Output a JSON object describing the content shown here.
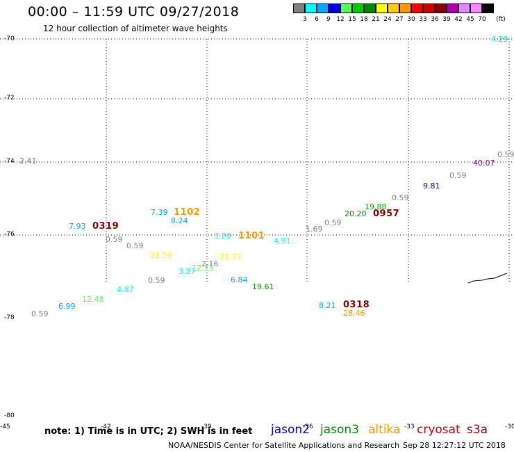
{
  "header": {
    "title": "00:00 – 11:59 UTC 09/27/2018",
    "subtitle": "12 hour collection of altimeter wave heights"
  },
  "legend": {
    "unit_label": "(ft)",
    "colors": [
      "#808080",
      "#00ffff",
      "#00aaff",
      "#0000ee",
      "#55ff55",
      "#00cc00",
      "#008800",
      "#ffff00",
      "#ffcc00",
      "#ff9900",
      "#ff0000",
      "#cc0000",
      "#880000",
      "#aa00aa",
      "#dd88ff",
      "#ff88ff",
      "#000000"
    ],
    "ticks": [
      "3",
      "6",
      "9",
      "12",
      "15",
      "18",
      "21",
      "24",
      "27",
      "30",
      "33",
      "36",
      "39",
      "42",
      "45",
      "70"
    ]
  },
  "map": {
    "latitude_labels": [
      "-70",
      "-72",
      "-74",
      "-76",
      "-78",
      "-80"
    ],
    "longitude_labels": [
      "-45",
      "-42",
      "-39",
      "-36",
      "-33",
      "-30"
    ],
    "left_axis_value": "2.41"
  },
  "wave_labels": [
    {
      "text": "4.29",
      "color": "#00e0e0"
    },
    {
      "text": "0.59",
      "color": "#808080"
    },
    {
      "text": "40.07",
      "color": "#9900aa"
    },
    {
      "text": "0.59",
      "color": "#808080"
    },
    {
      "text": "9.81",
      "color": "#0000cc"
    },
    {
      "text": "0.59",
      "color": "#808080"
    },
    {
      "text": "19.88",
      "color": "#00aa00"
    },
    {
      "text": "20.20",
      "color": "#008800"
    },
    {
      "text": "0957",
      "color": "#880000",
      "big": true
    },
    {
      "text": "0.59",
      "color": "#808080"
    },
    {
      "text": "1.69",
      "color": "#808080"
    },
    {
      "text": "7.39",
      "color": "#00aaff"
    },
    {
      "text": "1102",
      "color": "#ff9900",
      "big": true
    },
    {
      "text": "8.24",
      "color": "#00aaff"
    },
    {
      "text": "7.93",
      "color": "#00aaff"
    },
    {
      "text": "0319",
      "color": "#880000",
      "big": true
    },
    {
      "text": "0.59",
      "color": "#808080"
    },
    {
      "text": "0.59",
      "color": "#808080"
    },
    {
      "text": "3.20",
      "color": "#00ffff"
    },
    {
      "text": "1101",
      "color": "#ff9900",
      "big": true
    },
    {
      "text": "4.91",
      "color": "#00ffff"
    },
    {
      "text": "21.59",
      "color": "#ffff00"
    },
    {
      "text": "21.73",
      "color": "#ffff00"
    },
    {
      "text": "2.16",
      "color": "#808080"
    },
    {
      "text": "3.87",
      "color": "#00ffff"
    },
    {
      "text": "12.13",
      "color": "#55ff55"
    },
    {
      "text": "6.84",
      "color": "#00aaff"
    },
    {
      "text": "19.61",
      "color": "#008800"
    },
    {
      "text": "4.87",
      "color": "#00ffff"
    },
    {
      "text": "0.59",
      "color": "#808080"
    },
    {
      "text": "12.48",
      "color": "#55ff55"
    },
    {
      "text": "6.99",
      "color": "#00aaff"
    },
    {
      "text": "0.59",
      "color": "#808080"
    },
    {
      "text": "8.21",
      "color": "#00aaff"
    },
    {
      "text": "0318",
      "color": "#880000",
      "big": true
    },
    {
      "text": "28.46",
      "color": "#ff9900"
    }
  ],
  "footer": {
    "note": "note: 1) Time is in UTC; 2) SWH is in feet",
    "satellites": [
      {
        "name": "jason2",
        "color": "#0000cc"
      },
      {
        "name": "jason3",
        "color": "#008800"
      },
      {
        "name": "altika",
        "color": "#ff9900"
      },
      {
        "name": "cryosat",
        "color": "#cc0000"
      },
      {
        "name": "s3a",
        "color": "#880000"
      }
    ],
    "credit": "NOAA/NESDIS Center for Satellite Applications and Research",
    "timestamp": "Sep 28 12:27:12 UTC 2018"
  }
}
